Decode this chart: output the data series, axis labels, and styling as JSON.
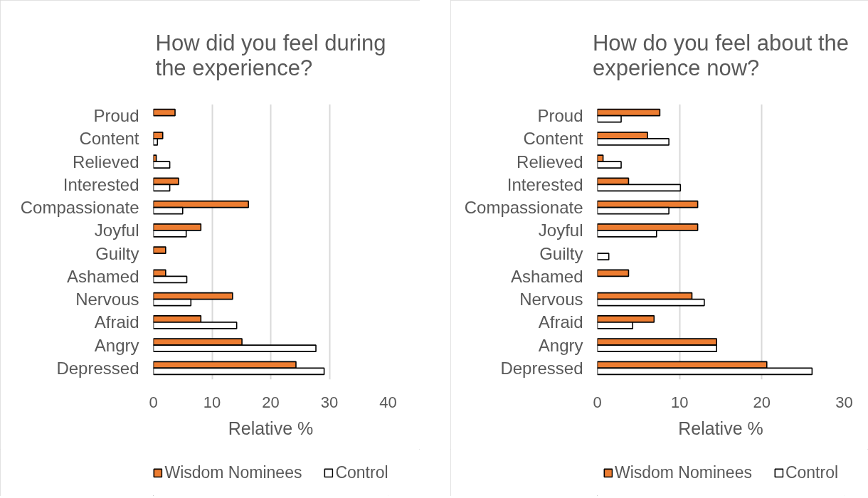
{
  "chart_data": [
    {
      "type": "bar",
      "orientation": "horizontal",
      "title": "How did you feel during the experience?",
      "xlabel": "Relative %",
      "categories": [
        "Proud",
        "Content",
        "Relieved",
        "Interested",
        "Compassionate",
        "Joyful",
        "Guilty",
        "Ashamed",
        "Nervous",
        "Afraid",
        "Angry",
        "Depressed"
      ],
      "series": [
        {
          "name": "Wisdom Nominees",
          "color": "#ed7d31",
          "values": [
            3.7,
            1.6,
            0.5,
            4.3,
            16.2,
            8.1,
            2.1,
            2.1,
            13.5,
            8.1,
            15.1,
            24.3
          ]
        },
        {
          "name": "Control",
          "color": "#ffffff",
          "values": [
            null,
            0.7,
            2.8,
            2.8,
            5.0,
            5.6,
            null,
            5.7,
            6.4,
            14.2,
            27.7,
            29.1
          ]
        }
      ],
      "xlim": [
        0,
        40
      ],
      "xticks": [
        0,
        10,
        20,
        30,
        40
      ],
      "grid": "x",
      "legend": "bottom"
    },
    {
      "type": "bar",
      "orientation": "horizontal",
      "title": "How do you feel about the experience now?",
      "xlabel": "Relative %",
      "categories": [
        "Proud",
        "Content",
        "Relieved",
        "Interested",
        "Compassionate",
        "Joyful",
        "Guilty",
        "Ashamed",
        "Nervous",
        "Afraid",
        "Angry",
        "Depressed"
      ],
      "series": [
        {
          "name": "Wisdom Nominees",
          "color": "#ed7d31",
          "values": [
            7.6,
            6.1,
            0.7,
            3.8,
            12.2,
            12.2,
            null,
            3.8,
            11.5,
            6.9,
            14.5,
            20.6
          ]
        },
        {
          "name": "Control",
          "color": "#ffffff",
          "values": [
            2.9,
            8.7,
            2.9,
            10.1,
            8.7,
            7.2,
            1.4,
            null,
            13.0,
            4.3,
            14.5,
            26.1
          ]
        }
      ],
      "xlim": [
        0,
        30
      ],
      "xticks": [
        0,
        10,
        20,
        30
      ],
      "grid": "x",
      "legend": "bottom"
    }
  ]
}
